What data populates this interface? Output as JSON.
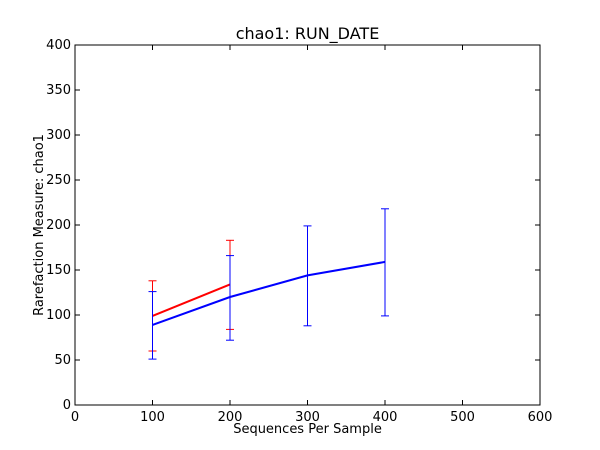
{
  "chart_data": {
    "type": "line",
    "title": "chao1: RUN_DATE",
    "xlabel": "Sequences Per Sample",
    "ylabel": "Rarefaction Measure: chao1",
    "xlim": [
      0,
      600
    ],
    "ylim": [
      0,
      400
    ],
    "xticks": [
      0,
      100,
      200,
      300,
      400,
      500,
      600
    ],
    "yticks": [
      0,
      50,
      100,
      150,
      200,
      250,
      300,
      350,
      400
    ],
    "grid": false,
    "legend": "none",
    "series": [
      {
        "color": "#ff0000",
        "x": [
          100,
          200
        ],
        "y": [
          99,
          134
        ],
        "err_low": [
          60,
          84
        ],
        "err_high": [
          138,
          183
        ]
      },
      {
        "color": "#0000ff",
        "x": [
          100,
          200,
          300,
          400
        ],
        "y": [
          89,
          120,
          144,
          159
        ],
        "err_low": [
          51,
          72,
          88,
          99
        ],
        "err_high": [
          126,
          166,
          199,
          218
        ]
      }
    ]
  }
}
